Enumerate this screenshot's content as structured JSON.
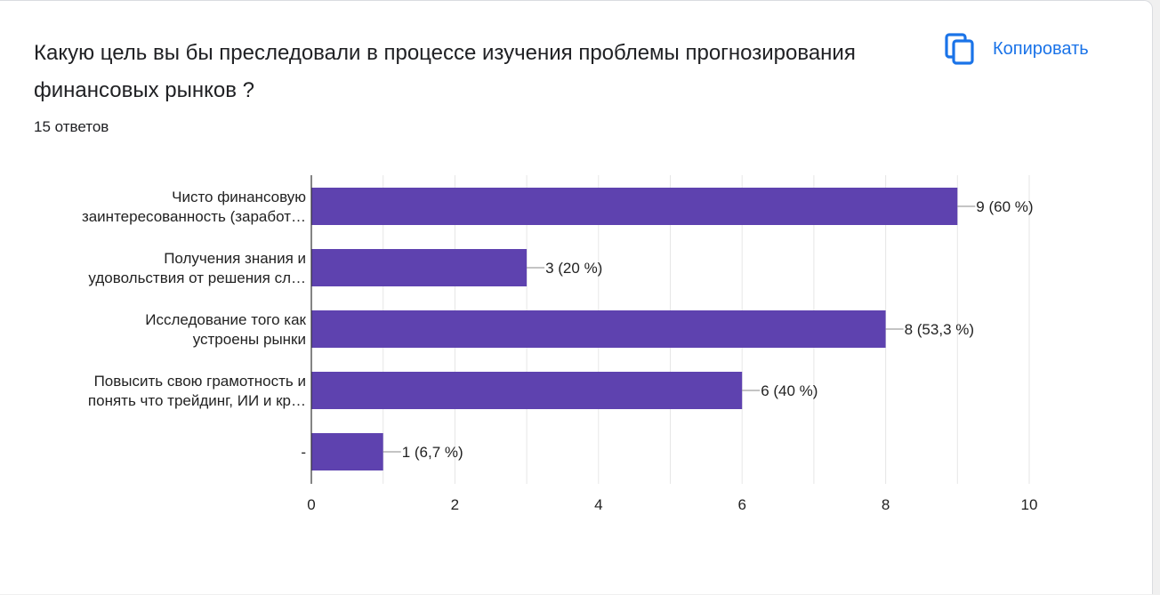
{
  "question": {
    "title": "Какую цель вы бы преследовали в процессе изучения проблемы прогнозирования финансовых рынков ?",
    "response_count": "15 ответов"
  },
  "toolbar": {
    "copy_label": "Копировать",
    "copy_icon": "copy-icon"
  },
  "colors": {
    "bar": "#5e42af",
    "accent": "#1a73e8",
    "grid": "#e6e6e6",
    "axis": "#333333"
  },
  "chart_data": {
    "type": "bar",
    "orientation": "horizontal",
    "categories": [
      [
        "Чисто финансовую",
        "заинтересованность (заработ…"
      ],
      [
        "Получения знания и",
        "удовольствия от решения сл…"
      ],
      [
        "Исследование того как",
        "устроены рынки"
      ],
      [
        "Повысить свою грамотность и",
        "понять что трейдинг, ИИ и кр…"
      ],
      [
        "-"
      ]
    ],
    "values": [
      9,
      3,
      8,
      6,
      1
    ],
    "value_labels": [
      "9 (60 %)",
      "3 (20 %)",
      "8 (53,3 %)",
      "6 (40 %)",
      "1 (6,7 %)"
    ],
    "xlim": [
      0,
      10
    ],
    "xticks": [
      0,
      2,
      4,
      6,
      8,
      10
    ],
    "tick_labels": [
      "0",
      "2",
      "4",
      "6",
      "8",
      "10"
    ],
    "grid": true
  }
}
